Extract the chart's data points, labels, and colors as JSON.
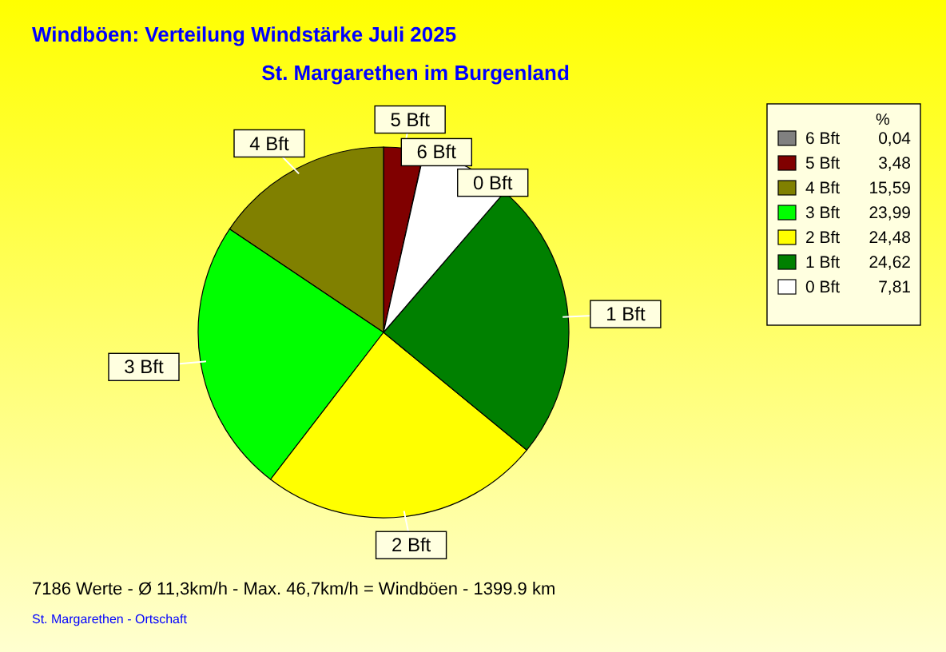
{
  "chart_data": {
    "type": "pie",
    "title": "Windböen: Verteilung Windstärke  Juli 2025",
    "subtitle": "St. Margarethen im Burgenland",
    "categories": [
      "6 Bft",
      "5 Bft",
      "4 Bft",
      "3 Bft",
      "2 Bft",
      "1 Bft",
      "0 Bft"
    ],
    "values": [
      0.04,
      3.48,
      15.59,
      23.99,
      24.48,
      24.62,
      7.81
    ],
    "value_labels": [
      "0,04",
      "3,48",
      "15,59",
      "23,99",
      "24,48",
      "24,62",
      "7,81"
    ],
    "colors": [
      "#808080",
      "#800000",
      "#808000",
      "#00ff00",
      "#ffff00",
      "#008000",
      "#ffffff"
    ],
    "legend": "top right",
    "legend_title": "%",
    "annotations": [
      "7186 Werte   -   Ø 11,3km/h  -  Max. 46,7km/h = Windböen   -   1399.9 km",
      "St. Margarethen - Ortschaft"
    ]
  }
}
